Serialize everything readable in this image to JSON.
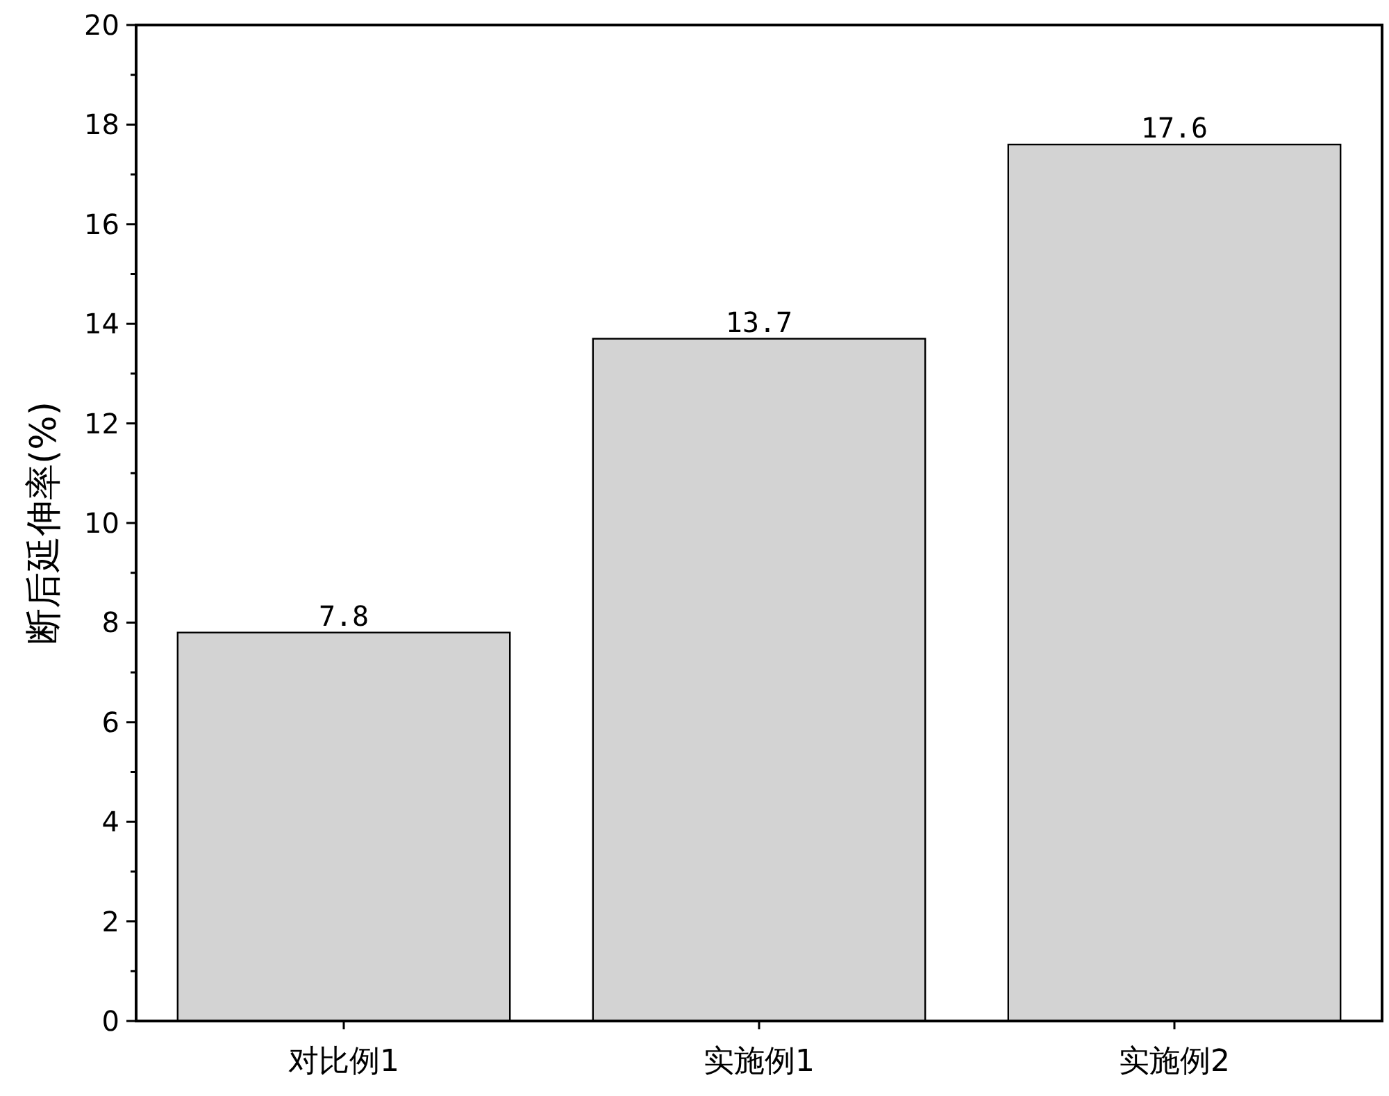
{
  "chart_data": {
    "type": "bar",
    "ylabel": "断后延伸率(%)",
    "categories": [
      "对比例1",
      "实施例1",
      "实施例2"
    ],
    "values": [
      7.8,
      13.7,
      17.6
    ],
    "color": "#d3d3d3",
    "ylim": [
      0,
      20
    ],
    "yticks": [
      0,
      2,
      4,
      6,
      8,
      10,
      12,
      14,
      16,
      18,
      20
    ],
    "data_labels": true,
    "grid": false
  }
}
